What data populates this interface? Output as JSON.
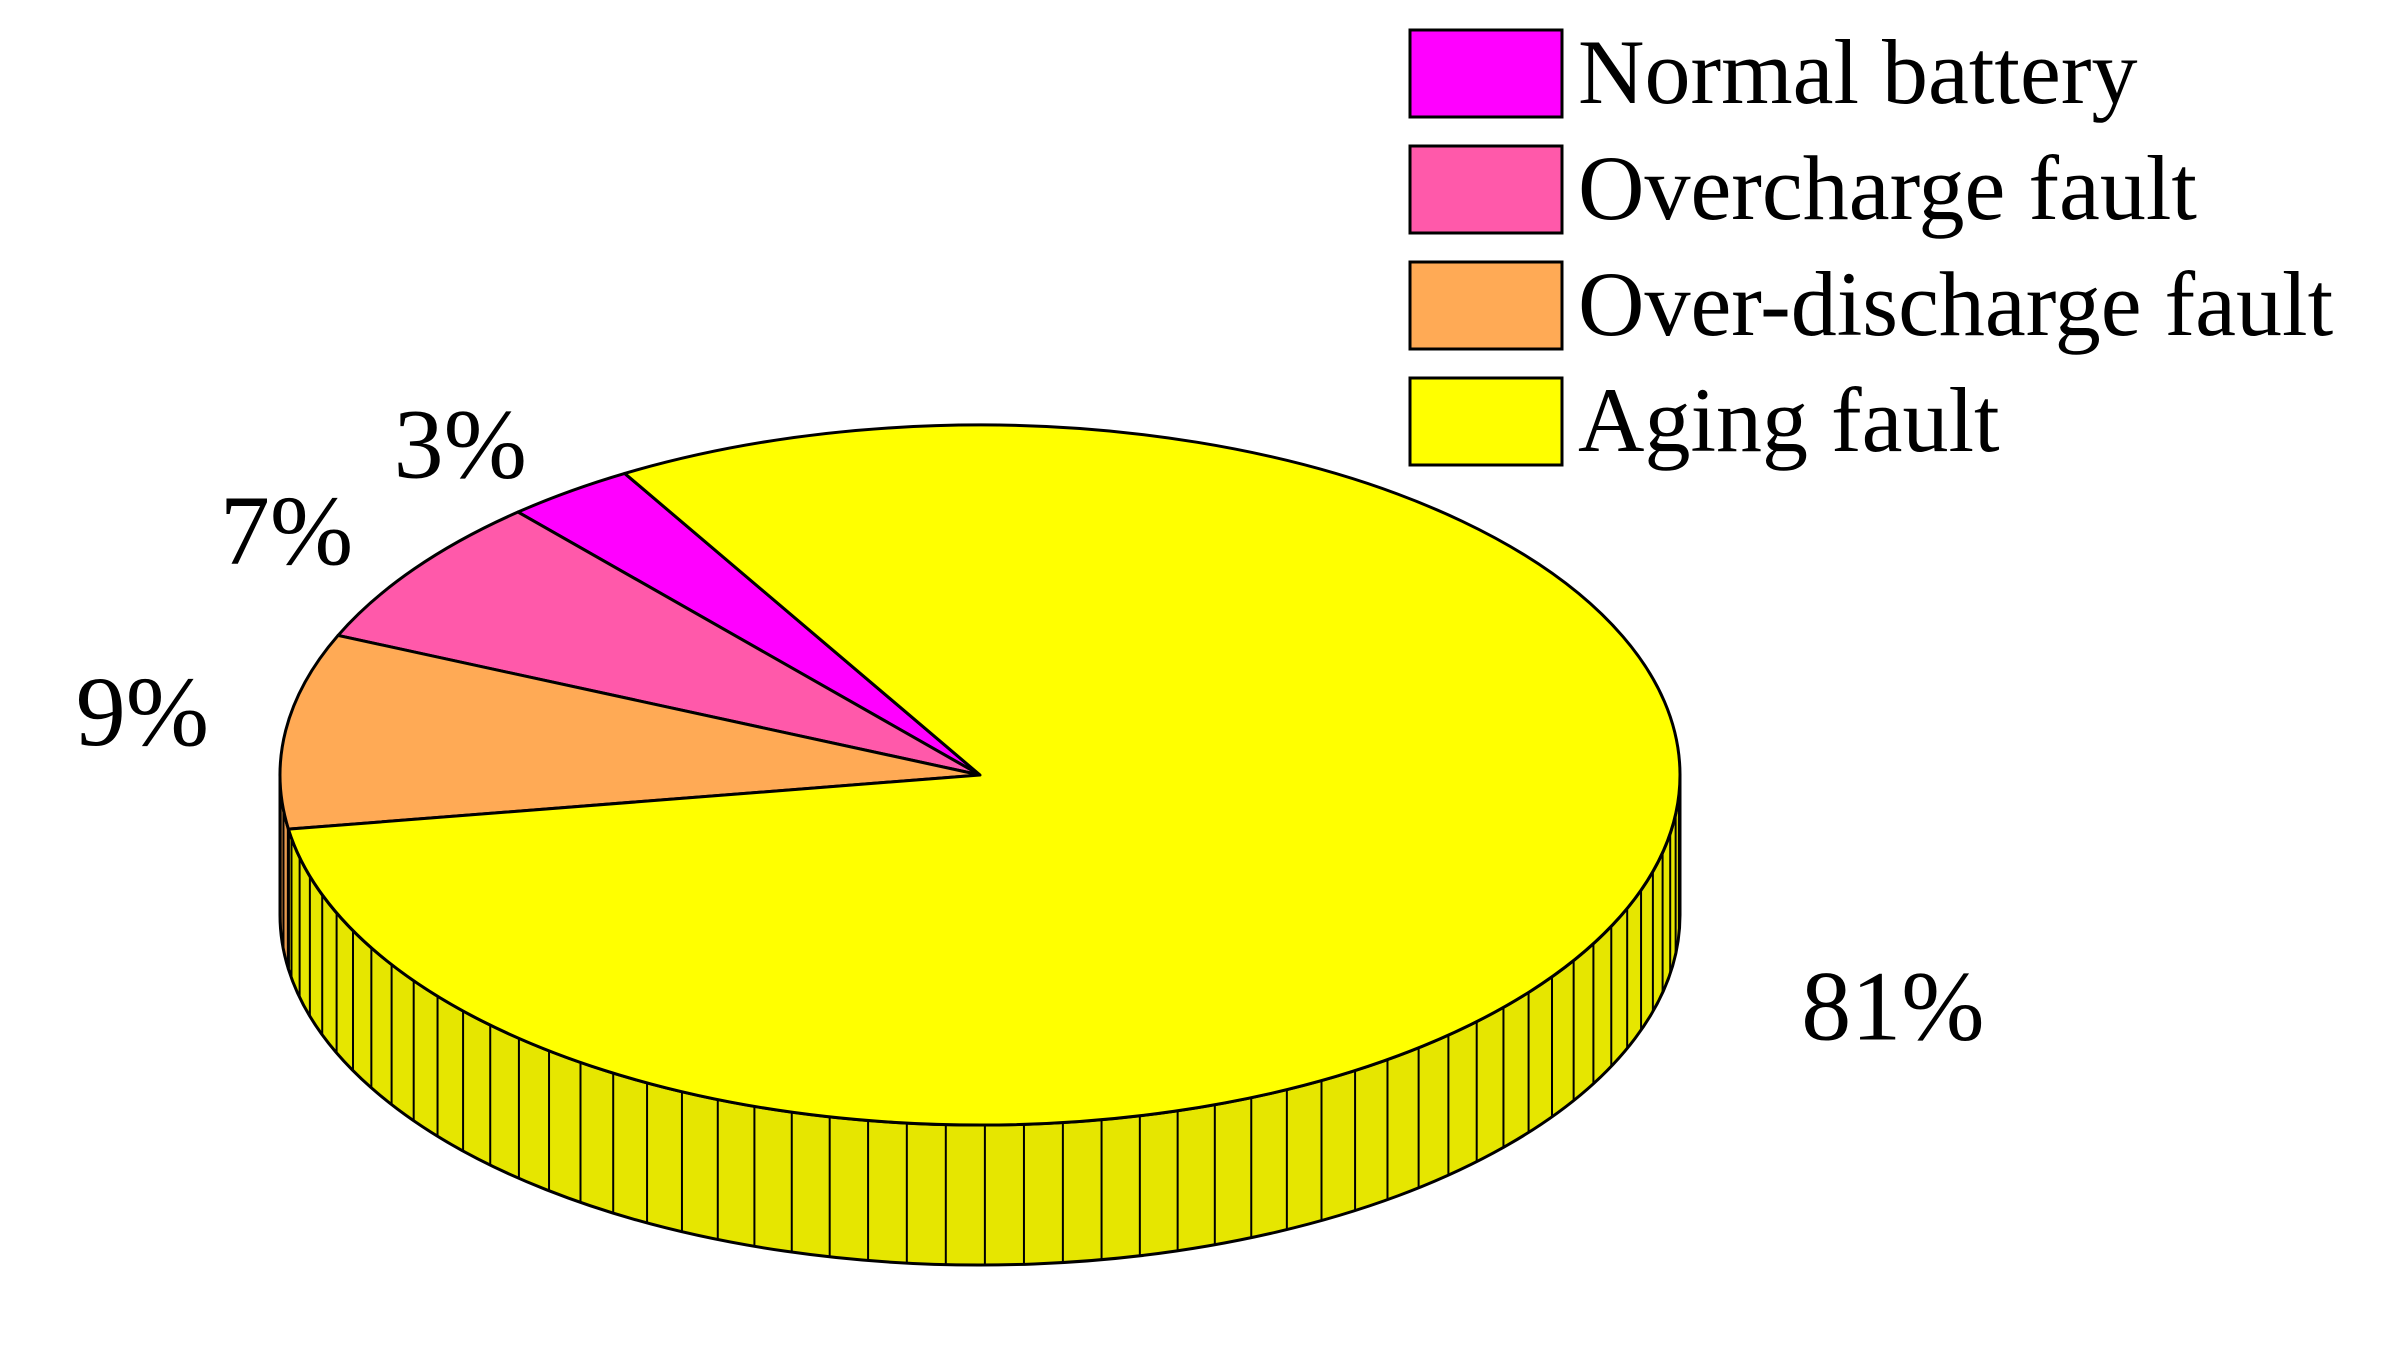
{
  "chart_data": {
    "type": "pie",
    "style": "3d",
    "categories": [
      "Normal battery",
      "Overcharge fault",
      "Over-discharge fault",
      "Aging fault"
    ],
    "values": [
      3,
      7,
      9,
      81
    ],
    "value_labels": [
      "3%",
      "7%",
      "9%",
      "81%"
    ],
    "unit": "%",
    "colors": [
      "#ff00ff",
      "#ff59aa",
      "#ffaa55",
      "#ffff00"
    ],
    "title": "",
    "legend": {
      "position": "top-right",
      "entries": [
        "Normal battery",
        "Overcharge fault",
        "Over-discharge fault",
        "Aging fault"
      ]
    }
  }
}
